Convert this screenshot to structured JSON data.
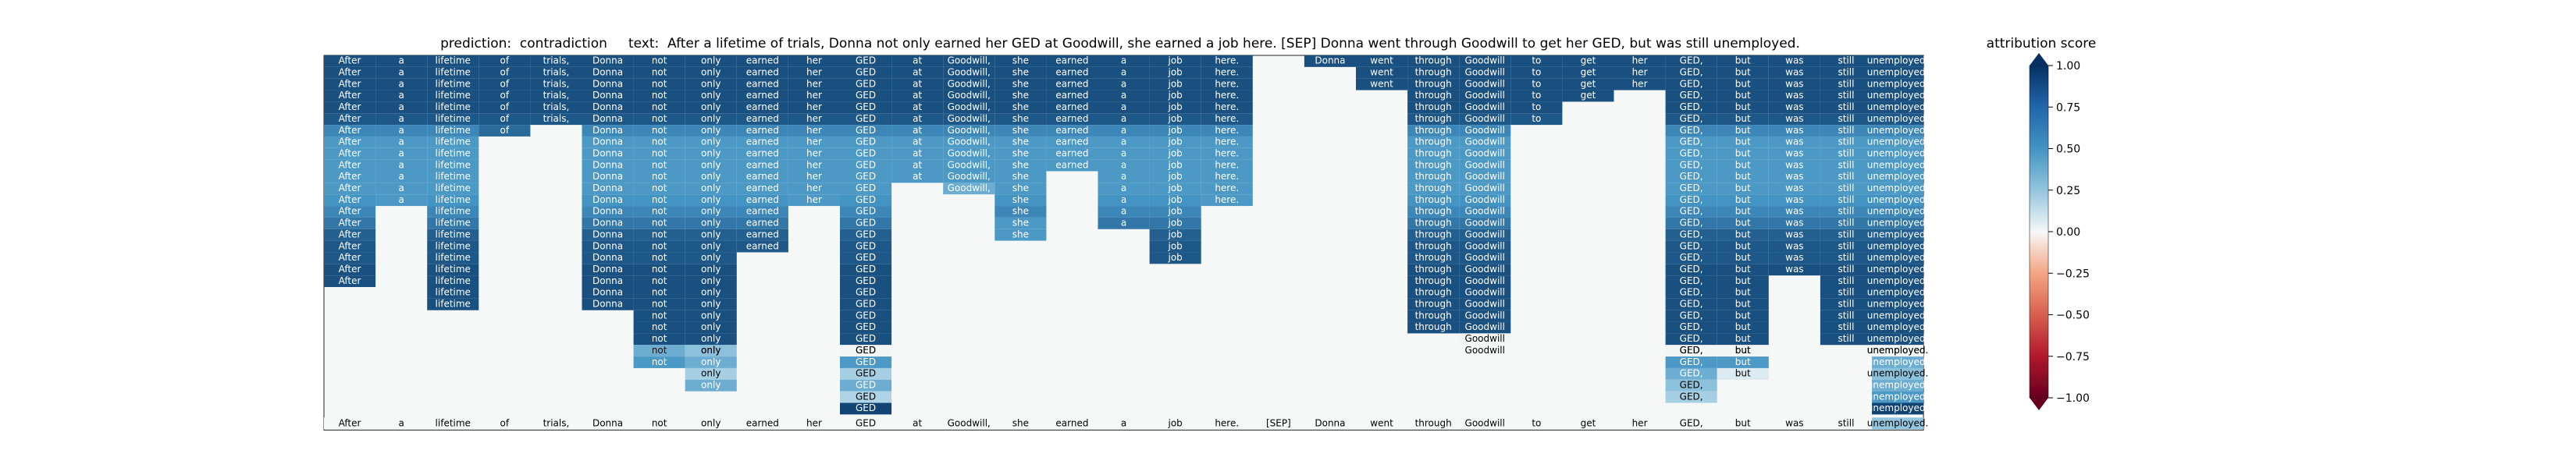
{
  "chart_data": {
    "type": "heatmap",
    "title": "prediction:  contradiction     text:  After a lifetime of trials, Donna not only earned her GED at Goodwill, she earned a job here. [SEP] Donna went through Goodwill to get her GED, but was still unemployed.",
    "colorbar_label": "attribution score",
    "colorbar": {
      "min": -1.0,
      "max": 1.0,
      "ticks": [
        "1.00",
        "0.75",
        "0.50",
        "0.25",
        "0.00",
        "−0.25",
        "−0.50",
        "−0.75",
        "−1.00"
      ],
      "colormap": "RdBu"
    },
    "tokens": [
      "After",
      "a",
      "lifetime",
      "of",
      "trials,",
      "Donna",
      "not",
      "only",
      "earned",
      "her",
      "GED",
      "at",
      "Goodwill,",
      "she",
      "earned",
      "a",
      "job",
      "here.",
      "[SEP]",
      "Donna",
      "went",
      "through",
      "Goodwill",
      "to",
      "get",
      "her",
      "GED,",
      "but",
      "was",
      "still",
      "unemployed."
    ],
    "row_lengths": [
      [
        0,
        18
      ],
      [
        0,
        17
      ],
      [
        0,
        17
      ],
      [
        0,
        17
      ],
      [
        0,
        17
      ],
      [
        0,
        17
      ],
      [
        0,
        17
      ],
      [
        0,
        17
      ],
      [
        0,
        17
      ],
      [
        0,
        17
      ],
      [
        0,
        17
      ],
      [
        0,
        17
      ],
      [
        0,
        17
      ],
      [
        0,
        17
      ],
      [
        0,
        17
      ],
      [
        0,
        17
      ],
      [
        0,
        17
      ],
      [
        0,
        17
      ],
      [
        0,
        17
      ],
      [
        0,
        17
      ],
      [
        0,
        17
      ],
      [
        0,
        17
      ],
      [
        0,
        17
      ],
      [
        0,
        17
      ],
      [
        0,
        17
      ],
      [
        0,
        17
      ],
      [
        0,
        17
      ],
      [
        0,
        17
      ],
      [
        0,
        17
      ],
      [
        0,
        17
      ],
      [
        0,
        17
      ]
    ],
    "spans": [
      {
        "token": 0,
        "rows": [
          0,
          19
        ],
        "values": [
          0.92,
          0.92,
          0.92,
          0.92,
          0.92,
          0.9,
          0.78,
          0.72,
          0.72,
          0.72,
          0.72,
          0.72,
          0.75,
          0.78,
          0.82,
          0.88,
          0.9,
          0.9,
          0.92,
          0.92
        ]
      },
      {
        "token": 1,
        "rows": [
          0,
          12
        ],
        "values": [
          0.92,
          0.92,
          0.92,
          0.92,
          0.92,
          0.9,
          0.78,
          0.72,
          0.72,
          0.72,
          0.72,
          0.72,
          0.72
        ]
      },
      {
        "token": 2,
        "rows": [
          0,
          21
        ],
        "values": [
          0.92,
          0.92,
          0.92,
          0.92,
          0.92,
          0.9,
          0.78,
          0.72,
          0.72,
          0.72,
          0.72,
          0.72,
          0.75,
          0.78,
          0.82,
          0.88,
          0.9,
          0.9,
          0.92,
          0.92,
          0.92,
          0.92
        ]
      },
      {
        "token": 3,
        "rows": [
          0,
          6
        ],
        "values": [
          0.92,
          0.92,
          0.92,
          0.92,
          0.92,
          0.9,
          0.85
        ]
      },
      {
        "token": 4,
        "rows": [
          0,
          5
        ],
        "values": [
          0.92,
          0.92,
          0.92,
          0.92,
          0.92,
          0.9
        ]
      },
      {
        "token": 5,
        "rows": [
          0,
          21
        ],
        "values": [
          0.92,
          0.92,
          0.92,
          0.92,
          0.92,
          0.9,
          0.78,
          0.72,
          0.72,
          0.72,
          0.72,
          0.72,
          0.75,
          0.78,
          0.82,
          0.88,
          0.9,
          0.9,
          0.92,
          0.92,
          0.92,
          0.92
        ]
      },
      {
        "token": 6,
        "rows": [
          0,
          26
        ],
        "values": [
          0.92,
          0.92,
          0.92,
          0.92,
          0.92,
          0.9,
          0.78,
          0.72,
          0.72,
          0.72,
          0.72,
          0.72,
          0.75,
          0.78,
          0.82,
          0.88,
          0.9,
          0.9,
          0.92,
          0.92,
          0.92,
          0.92,
          0.92,
          0.92,
          0.92,
          0.62,
          0.72
        ]
      },
      {
        "token": 7,
        "rows": [
          0,
          28
        ],
        "values": [
          0.92,
          0.92,
          0.92,
          0.92,
          0.92,
          0.9,
          0.78,
          0.72,
          0.72,
          0.72,
          0.72,
          0.72,
          0.75,
          0.78,
          0.82,
          0.88,
          0.9,
          0.9,
          0.92,
          0.92,
          0.92,
          0.92,
          0.92,
          0.92,
          0.92,
          0.52,
          0.62,
          0.42,
          0.62
        ]
      },
      {
        "token": 8,
        "rows": [
          0,
          16
        ],
        "values": [
          0.92,
          0.92,
          0.92,
          0.92,
          0.92,
          0.9,
          0.78,
          0.72,
          0.72,
          0.72,
          0.72,
          0.72,
          0.75,
          0.78,
          0.82,
          0.88,
          0.9
        ]
      },
      {
        "token": 9,
        "rows": [
          0,
          12
        ],
        "values": [
          0.92,
          0.92,
          0.92,
          0.92,
          0.92,
          0.9,
          0.78,
          0.72,
          0.72,
          0.72,
          0.72,
          0.72,
          0.72
        ]
      },
      {
        "token": 10,
        "rows": [
          0,
          30
        ],
        "values": [
          0.92,
          0.92,
          0.92,
          0.92,
          0.92,
          0.9,
          0.78,
          0.72,
          0.72,
          0.72,
          0.72,
          0.72,
          0.75,
          0.78,
          0.82,
          0.88,
          0.9,
          0.9,
          0.92,
          0.92,
          0.92,
          0.92,
          0.92,
          0.92,
          0.92,
          0.02,
          0.72,
          0.42,
          0.62,
          0.38,
          0.95
        ]
      },
      {
        "token": 11,
        "rows": [
          0,
          10
        ],
        "values": [
          0.92,
          0.92,
          0.92,
          0.92,
          0.92,
          0.9,
          0.78,
          0.72,
          0.72,
          0.72,
          0.72
        ]
      },
      {
        "token": 12,
        "rows": [
          0,
          11
        ],
        "values": [
          0.92,
          0.92,
          0.92,
          0.92,
          0.92,
          0.9,
          0.78,
          0.72,
          0.72,
          0.72,
          0.72,
          0.62
        ]
      },
      {
        "token": 13,
        "rows": [
          0,
          15
        ],
        "values": [
          0.92,
          0.92,
          0.92,
          0.92,
          0.92,
          0.9,
          0.78,
          0.72,
          0.72,
          0.72,
          0.72,
          0.72,
          0.75,
          0.78,
          0.72,
          0.72
        ]
      },
      {
        "token": 14,
        "rows": [
          0,
          9
        ],
        "values": [
          0.92,
          0.92,
          0.92,
          0.92,
          0.92,
          0.9,
          0.78,
          0.72,
          0.72,
          0.72
        ]
      },
      {
        "token": 15,
        "rows": [
          0,
          14
        ],
        "values": [
          0.92,
          0.92,
          0.92,
          0.92,
          0.92,
          0.9,
          0.78,
          0.72,
          0.72,
          0.72,
          0.72,
          0.72,
          0.75,
          0.78,
          0.82
        ]
      },
      {
        "token": 16,
        "rows": [
          0,
          17
        ],
        "values": [
          0.92,
          0.92,
          0.92,
          0.92,
          0.92,
          0.9,
          0.78,
          0.72,
          0.72,
          0.72,
          0.72,
          0.72,
          0.75,
          0.78,
          0.82,
          0.88,
          0.9,
          0.9
        ]
      },
      {
        "token": 17,
        "rows": [
          0,
          12
        ],
        "values": [
          0.92,
          0.92,
          0.92,
          0.92,
          0.92,
          0.9,
          0.78,
          0.72,
          0.72,
          0.72,
          0.72,
          0.72,
          0.72
        ]
      },
      {
        "token": 19,
        "rows": [
          0,
          0
        ],
        "values": [
          0.92
        ]
      },
      {
        "token": 20,
        "rows": [
          0,
          2
        ],
        "values": [
          0.92,
          0.92,
          0.92
        ]
      },
      {
        "token": 21,
        "rows": [
          0,
          23
        ],
        "values": [
          0.92,
          0.92,
          0.92,
          0.92,
          0.92,
          0.9,
          0.78,
          0.72,
          0.72,
          0.72,
          0.72,
          0.72,
          0.75,
          0.78,
          0.82,
          0.88,
          0.9,
          0.9,
          0.92,
          0.92,
          0.92,
          0.92,
          0.92,
          0.92
        ]
      },
      {
        "token": 22,
        "rows": [
          0,
          24
        ],
        "values": [
          0.92,
          0.92,
          0.92,
          0.92,
          0.92,
          0.9,
          0.78,
          0.72,
          0.72,
          0.72,
          0.72,
          0.72,
          0.75,
          0.78,
          0.82,
          0.88,
          0.9,
          0.9,
          0.92,
          0.92,
          0.92,
          0.92,
          0.92,
          0.92,
          0.02
        ]
      },
      {
        "token": 23,
        "rows": [
          0,
          5
        ],
        "values": [
          0.92,
          0.92,
          0.92,
          0.92,
          0.92,
          0.9
        ]
      },
      {
        "token": 24,
        "rows": [
          0,
          3
        ],
        "values": [
          0.92,
          0.92,
          0.92,
          0.92
        ]
      },
      {
        "token": 25,
        "rows": [
          0,
          2
        ],
        "values": [
          0.92,
          0.92,
          0.92
        ]
      },
      {
        "token": 26,
        "rows": [
          0,
          29
        ],
        "values": [
          0.92,
          0.92,
          0.92,
          0.92,
          0.92,
          0.9,
          0.78,
          0.72,
          0.72,
          0.72,
          0.72,
          0.72,
          0.75,
          0.78,
          0.82,
          0.88,
          0.9,
          0.9,
          0.92,
          0.92,
          0.92,
          0.92,
          0.92,
          0.92,
          0.92,
          0.02,
          0.72,
          0.62,
          0.52,
          0.42
        ]
      },
      {
        "token": 27,
        "rows": [
          0,
          27
        ],
        "values": [
          0.92,
          0.92,
          0.92,
          0.92,
          0.92,
          0.9,
          0.78,
          0.72,
          0.72,
          0.72,
          0.72,
          0.72,
          0.75,
          0.78,
          0.82,
          0.88,
          0.9,
          0.9,
          0.92,
          0.92,
          0.92,
          0.92,
          0.92,
          0.92,
          0.92,
          0.02,
          0.72,
          0.18
        ]
      },
      {
        "token": 28,
        "rows": [
          0,
          18
        ],
        "values": [
          0.92,
          0.92,
          0.92,
          0.92,
          0.92,
          0.9,
          0.78,
          0.72,
          0.72,
          0.72,
          0.72,
          0.72,
          0.75,
          0.78,
          0.82,
          0.88,
          0.9,
          0.9,
          0.92
        ]
      },
      {
        "token": 29,
        "rows": [
          0,
          24
        ],
        "values": [
          0.92,
          0.92,
          0.92,
          0.92,
          0.92,
          0.9,
          0.78,
          0.72,
          0.72,
          0.72,
          0.72,
          0.72,
          0.75,
          0.78,
          0.82,
          0.88,
          0.9,
          0.9,
          0.92,
          0.92,
          0.92,
          0.92,
          0.92,
          0.92,
          0.92
        ]
      },
      {
        "token": 30,
        "rows": [
          0,
          30
        ],
        "values": [
          0.92,
          0.92,
          0.92,
          0.92,
          0.92,
          0.9,
          0.78,
          0.72,
          0.72,
          0.72,
          0.72,
          0.72,
          0.75,
          0.78,
          0.82,
          0.88,
          0.9,
          0.9,
          0.92,
          0.92,
          0.92,
          0.92,
          0.92,
          0.92,
          0.92,
          0.02,
          0.62,
          0.52,
          0.62,
          0.72,
          0.95
        ]
      }
    ],
    "special_cells": [
      {
        "token": 6,
        "row": 25,
        "label": "not"
      },
      {
        "token": 7,
        "row": 25,
        "label": "only"
      },
      {
        "token": 10,
        "row": 25,
        "label": "GED"
      },
      {
        "token": 22,
        "row": 25,
        "label": "Goodwill"
      },
      {
        "token": 26,
        "row": 25,
        "label": "GED,"
      },
      {
        "token": 27,
        "row": 25,
        "label": "but"
      },
      {
        "token": 30,
        "row": 25,
        "label": "unemployed."
      }
    ]
  }
}
